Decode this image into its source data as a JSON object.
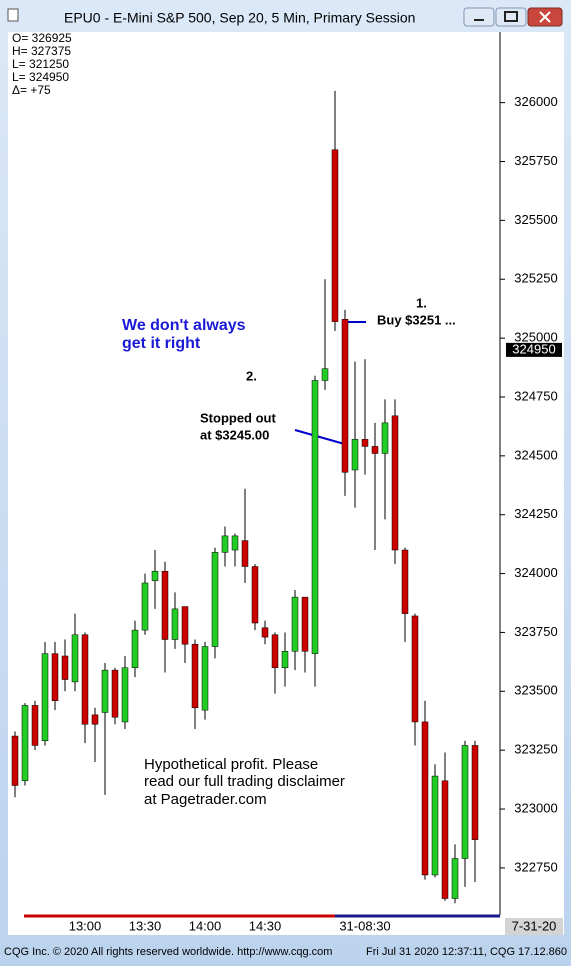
{
  "window_title": "EPU0 - E-Mini S&P 500, Sep 20, 5 Min, Primary Session",
  "footer": {
    "left": "CQG Inc. © 2020 All rights reserved worldwide. http://www.cqg.com",
    "right": "Fri Jul 31 2020 12:37:11, CQG 17.12.860"
  },
  "chart_data": {
    "type": "candlestick",
    "ohlc_box": [
      "O=  326925",
      "H=  327375",
      "L=  321250",
      "L=  324950",
      "Δ=        +75"
    ],
    "annotations": [
      "We don't always",
      "get it right",
      "1.",
      "Buy $3251 ...",
      "2.",
      "Stopped out",
      "at $3245.00",
      "Hypothetical profit.  Please",
      "read our full trading disclaimer",
      "at Pagetrader.com"
    ],
    "date_label": "7-31-20",
    "last_price": 324950,
    "up_color": "#22cc22",
    "down_color": "#cc0000",
    "ylim": [
      322550,
      326300
    ],
    "yticks": [
      322750,
      323000,
      323250,
      323500,
      323750,
      324000,
      324250,
      324500,
      324750,
      325000,
      325250,
      325500,
      325750,
      326000
    ],
    "categories": [
      null,
      null,
      null,
      null,
      null,
      null,
      null,
      "13:00",
      null,
      null,
      null,
      null,
      null,
      "13:30",
      null,
      null,
      null,
      null,
      null,
      "14:00",
      null,
      null,
      null,
      null,
      null,
      "14:30",
      null,
      null,
      null,
      null,
      null,
      null,
      null,
      null,
      null,
      "31-08:30",
      null,
      null,
      null,
      null,
      null,
      null,
      null,
      null,
      null,
      null,
      null
    ],
    "open": [
      323310,
      323120,
      323440,
      323290,
      323660,
      323650,
      323540,
      323740,
      323400,
      323410,
      323590,
      323370,
      323600,
      323760,
      323970,
      324010,
      323720,
      323860,
      323700,
      323420,
      323690,
      324090,
      324100,
      324140,
      324030,
      323770,
      323740,
      323600,
      323670,
      323900,
      323660,
      324820,
      325800,
      325080,
      324440,
      324570,
      324540,
      324510,
      324670,
      324100,
      323820,
      323370,
      322720,
      323120,
      322620,
      322790,
      323270
    ],
    "high": [
      323330,
      323450,
      323460,
      323710,
      323710,
      323720,
      323830,
      323750,
      323430,
      323620,
      323600,
      323650,
      323800,
      324000,
      324100,
      324050,
      323920,
      323860,
      323720,
      323710,
      324110,
      324200,
      324170,
      324360,
      324040,
      323800,
      323750,
      323750,
      323930,
      323900,
      324840,
      325250,
      326050,
      325120,
      324900,
      324910,
      324640,
      324740,
      324740,
      324110,
      323830,
      323460,
      323190,
      323240,
      322850,
      323290,
      323290
    ],
    "low": [
      323050,
      323100,
      323250,
      323270,
      323420,
      323500,
      323500,
      323280,
      323200,
      323060,
      323360,
      323340,
      323560,
      323740,
      323850,
      323580,
      323680,
      323620,
      323340,
      323380,
      323640,
      324030,
      324030,
      323960,
      323760,
      323700,
      323490,
      323520,
      323590,
      323580,
      323520,
      324780,
      325030,
      324330,
      324280,
      324420,
      324100,
      324230,
      324040,
      323710,
      323270,
      322700,
      322710,
      322610,
      322600,
      322670,
      322690
    ],
    "close": [
      323100,
      323440,
      323270,
      323660,
      323460,
      323550,
      323740,
      323360,
      323360,
      323590,
      323390,
      323600,
      323760,
      323960,
      324010,
      323720,
      323850,
      323700,
      323430,
      323690,
      324090,
      324160,
      324160,
      324030,
      323790,
      323730,
      323600,
      323670,
      323900,
      323670,
      324820,
      324870,
      325070,
      324430,
      324570,
      324540,
      324510,
      324640,
      324100,
      323830,
      323370,
      322720,
      323140,
      322620,
      322790,
      323270,
      322870
    ]
  }
}
